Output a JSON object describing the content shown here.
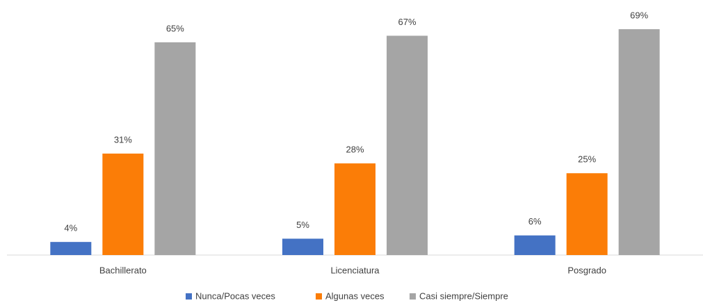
{
  "chart_data": {
    "type": "bar",
    "categories": [
      "Bachillerato",
      "Licenciatura",
      "Posgrado"
    ],
    "series": [
      {
        "name": "Nunca/Pocas veces",
        "color": "#4472c4",
        "values": [
          4,
          5,
          6
        ],
        "value_labels": [
          "4%",
          "5%",
          "6%"
        ]
      },
      {
        "name": "Algunas veces",
        "color": "#fb7d07",
        "values": [
          31,
          28,
          25
        ],
        "value_labels": [
          "31%",
          "28%",
          "25%"
        ]
      },
      {
        "name": "Casi siempre/Siempre",
        "color": "#a5a5a5",
        "values": [
          65,
          67,
          69
        ],
        "value_labels": [
          "65%",
          "67%",
          "69%"
        ]
      }
    ]
  }
}
